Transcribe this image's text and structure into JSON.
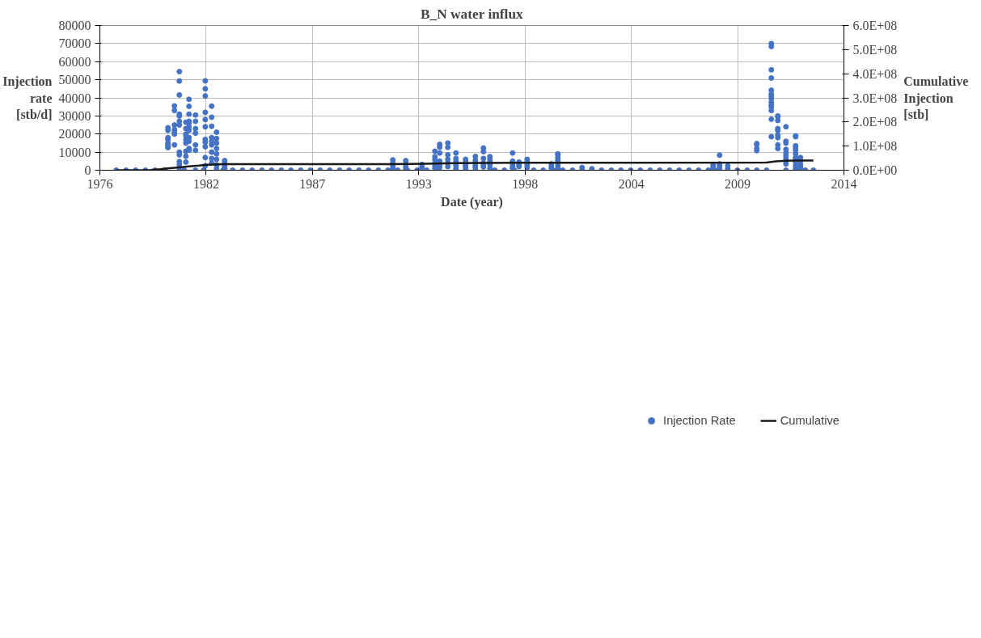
{
  "chart_data": {
    "type": "scatter",
    "title": "B_N water influx",
    "xlabel": "Date (year)",
    "ylabel": "Injection rate [stb/d]",
    "y2label": "Cumulative Injection [stb]",
    "xlim": [
      "1976-08-28",
      "2014-12-27"
    ],
    "xticks": [
      {
        "value": "1976-08-28",
        "label": "1976"
      },
      {
        "value": "1982-02-18",
        "label": "1982"
      },
      {
        "value": "1987-08-11",
        "label": "1987"
      },
      {
        "value": "1993-01-31",
        "label": "1993"
      },
      {
        "value": "1998-07-24",
        "label": "1998"
      },
      {
        "value": "2004-01-14",
        "label": "2004"
      },
      {
        "value": "2009-07-06",
        "label": "2009"
      },
      {
        "value": "2014-12-27",
        "label": "2014"
      }
    ],
    "ylim": [
      0,
      80000
    ],
    "yticks": [
      0,
      10000,
      20000,
      30000,
      40000,
      50000,
      60000,
      70000,
      80000
    ],
    "y2lim": [
      0,
      600000000
    ],
    "y2ticks": [
      {
        "value": 0,
        "label": "0.0E+00"
      },
      {
        "value": 100000000,
        "label": "1.0E+08"
      },
      {
        "value": 200000000,
        "label": "2.0E+08"
      },
      {
        "value": 300000000,
        "label": "3.0E+08"
      },
      {
        "value": 400000000,
        "label": "4.0E+08"
      },
      {
        "value": 500000000,
        "label": "5.0E+08"
      },
      {
        "value": 600000000,
        "label": "6.0E+08"
      }
    ],
    "grid": true,
    "legend": "bottom",
    "series": [
      {
        "name": "Injection Rate",
        "color": "#4472c4",
        "marker": "circle",
        "x": [
          "1980-03",
          "1980-03",
          "1980-03",
          "1980-03",
          "1980-03",
          "1980-03",
          "1980-03",
          "1980-03",
          "1980-07",
          "1980-07",
          "1980-07",
          "1980-07",
          "1980-07",
          "1980-07",
          "1980-07",
          "1980-10",
          "1980-10",
          "1980-10",
          "1980-10",
          "1980-10",
          "1980-10",
          "1980-10",
          "1980-10",
          "1980-10",
          "1980-10",
          "1980-10",
          "1980-10",
          "1981-02",
          "1981-02",
          "1981-02",
          "1981-02",
          "1981-02",
          "1981-02",
          "1981-02",
          "1981-02",
          "1981-02",
          "1981-04",
          "1981-04",
          "1981-04",
          "1981-04",
          "1981-04",
          "1981-04",
          "1981-04",
          "1981-04",
          "1981-04",
          "1981-04",
          "1981-04",
          "1981-08",
          "1981-08",
          "1981-08",
          "1981-08",
          "1981-08",
          "1981-08",
          "1981-08",
          "1982-02",
          "1982-02",
          "1982-02",
          "1982-02",
          "1982-02",
          "1982-02",
          "1982-02",
          "1982-02",
          "1982-02",
          "1982-02",
          "1982-02",
          "1982-06",
          "1982-06",
          "1982-06",
          "1982-06",
          "1982-06",
          "1982-06",
          "1982-06",
          "1982-06",
          "1982-06",
          "1982-09",
          "1982-09",
          "1982-09",
          "1982-09",
          "1982-09",
          "1982-09",
          "1982-09",
          "1982-09",
          "1983-02",
          "1983-02",
          "1983-02",
          "1983-02",
          "1983-02",
          "1991-10",
          "1991-10",
          "1991-10",
          "1991-10",
          "1992-06",
          "1992-06",
          "1992-06",
          "1992-06",
          "1993-04",
          "1993-04",
          "1993-12",
          "1993-12",
          "1993-12",
          "1993-12",
          "1993-12",
          "1993-12",
          "1994-03",
          "1994-03",
          "1994-03",
          "1994-03",
          "1994-03",
          "1994-03",
          "1994-08",
          "1994-08",
          "1994-08",
          "1994-08",
          "1994-08",
          "1994-08",
          "1995-01",
          "1995-01",
          "1995-01",
          "1995-01",
          "1995-01",
          "1995-01",
          "1995-07",
          "1995-07",
          "1995-07",
          "1995-07",
          "1995-07",
          "1996-01",
          "1996-01",
          "1996-01",
          "1996-01",
          "1996-01",
          "1996-06",
          "1996-06",
          "1996-06",
          "1996-06",
          "1996-06",
          "1996-06",
          "1996-10",
          "1996-10",
          "1996-10",
          "1996-10",
          "1996-10",
          "1997-12",
          "1997-12",
          "1997-12",
          "1997-12",
          "1997-12",
          "1998-04",
          "1998-04",
          "1998-04",
          "1998-09",
          "1998-09",
          "1998-09",
          "1998-09",
          "1999-12",
          "1999-12",
          "1999-12",
          "2000-04",
          "2000-04",
          "2000-04",
          "2000-04",
          "2000-04",
          "2000-04",
          "2000-04",
          "2001-07",
          "2002-01",
          "2008-04",
          "2008-04",
          "2008-04",
          "2008-08",
          "2008-08",
          "2008-08",
          "2008-08",
          "2008-08",
          "2009-01",
          "2009-01",
          "2010-07",
          "2010-07",
          "2010-07",
          "2010-07",
          "2011-04",
          "2011-04",
          "2011-04",
          "2011-04",
          "2011-04",
          "2011-04",
          "2011-04",
          "2011-04",
          "2011-04",
          "2011-04",
          "2011-04",
          "2011-04",
          "2011-04",
          "2011-04",
          "2011-08",
          "2011-08",
          "2011-08",
          "2011-08",
          "2011-08",
          "2011-08",
          "2011-08",
          "2011-08",
          "2011-08",
          "2012-01",
          "2012-01",
          "2012-01",
          "2012-01",
          "2012-01",
          "2012-01",
          "2012-01",
          "2012-01",
          "2012-01",
          "2012-07",
          "2012-07",
          "2012-07",
          "2012-07",
          "2012-07",
          "2012-07",
          "2012-07",
          "2012-07",
          "2012-07",
          "2012-07",
          "2012-07",
          "2012-10",
          "2012-10",
          "2012-10",
          "2012-10",
          "2012-10",
          "1977-07",
          "1978-01",
          "1978-07",
          "1979-01",
          "1979-07",
          "1980-01",
          "1981-01",
          "1982-01",
          "1983-01",
          "1983-07",
          "1984-01",
          "1984-07",
          "1985-01",
          "1985-07",
          "1986-01",
          "1986-07",
          "1987-01",
          "1987-07",
          "1988-01",
          "1988-07",
          "1989-01",
          "1989-07",
          "1990-01",
          "1990-07",
          "1991-01",
          "1991-07",
          "1992-01",
          "1992-07",
          "1993-01",
          "1993-07",
          "1994-01",
          "1995-01",
          "1996-01",
          "1997-01",
          "1997-07",
          "1998-01",
          "1999-01",
          "1999-07",
          "2000-01",
          "2000-07",
          "2001-01",
          "2001-07",
          "2002-01",
          "2002-07",
          "2003-01",
          "2003-07",
          "2004-01",
          "2004-07",
          "2005-01",
          "2005-07",
          "2006-01",
          "2006-07",
          "2007-01",
          "2007-07",
          "2008-01",
          "2008-07",
          "2009-01",
          "2009-07",
          "2010-01",
          "2010-07",
          "2011-01",
          "2012-01",
          "2012-07",
          "2013-01",
          "2013-06"
        ],
        "values": [
          18000,
          14000,
          12500,
          22000,
          23500,
          17000,
          13000,
          15000,
          21000,
          35500,
          33000,
          25000,
          22500,
          20000,
          14000,
          54500,
          49300,
          41600,
          27000,
          25000,
          30000,
          31000,
          8500,
          10000,
          4800,
          3100,
          0,
          26500,
          23000,
          20000,
          19000,
          17000,
          15000,
          10500,
          7700,
          4500,
          39200,
          35300,
          31000,
          27000,
          26000,
          24000,
          22000,
          18000,
          16000,
          12000,
          11000,
          30500,
          27000,
          23000,
          20500,
          14000,
          11000,
          0,
          49400,
          45000,
          41000,
          32000,
          28000,
          24000,
          17000,
          15500,
          13000,
          7000,
          2500,
          35400,
          29300,
          24300,
          18000,
          16000,
          14000,
          10000,
          6500,
          4000,
          21000,
          17500,
          15000,
          12000,
          9000,
          6000,
          3000,
          1000,
          5300,
          4000,
          3000,
          2000,
          1000,
          5700,
          4000,
          2500,
          1000,
          5300,
          3700,
          2000,
          500,
          3200,
          1500,
          10500,
          7500,
          6000,
          4000,
          2500,
          1000,
          14300,
          9500,
          12700,
          5000,
          3000,
          1500,
          15000,
          12600,
          8500,
          6000,
          4000,
          2000,
          9500,
          6500,
          5000,
          3500,
          2500,
          1000,
          6000,
          4500,
          3000,
          2000,
          1000,
          7600,
          5500,
          4000,
          2500,
          1500,
          12300,
          10300,
          6500,
          4000,
          3000,
          1800,
          7500,
          6000,
          4500,
          3000,
          1000,
          9500,
          5000,
          3500,
          2000,
          1000,
          4500,
          3000,
          2000,
          6000,
          4500,
          3000,
          1500,
          3500,
          2000,
          1000,
          9000,
          8500,
          7000,
          5500,
          4000,
          2500,
          1000,
          1500,
          800,
          3000,
          2000,
          1000,
          8300,
          3500,
          2500,
          1500,
          500,
          2500,
          1000,
          14700,
          14200,
          12000,
          10800,
          70000,
          68400,
          55500,
          51000,
          44200,
          42000,
          41000,
          39500,
          37500,
          36000,
          35000,
          33000,
          28200,
          18500,
          30000,
          29500,
          27500,
          23000,
          22000,
          19500,
          18000,
          14000,
          12000,
          24000,
          16000,
          15000,
          11500,
          9500,
          8000,
          6500,
          5000,
          3500,
          19000,
          18500,
          13500,
          12500,
          11000,
          9000,
          7000,
          6500,
          4500,
          2500,
          1000,
          7000,
          5000,
          3000,
          1500,
          0,
          0,
          0,
          0,
          0,
          0,
          0,
          0,
          0,
          0,
          0,
          0,
          0,
          0,
          0,
          0,
          0,
          0,
          0,
          0,
          0,
          0,
          0,
          0,
          0,
          0,
          0,
          0,
          0,
          0,
          0,
          0,
          0,
          0,
          0,
          0,
          0,
          0,
          0,
          0,
          0,
          0,
          0,
          0,
          0,
          0,
          0,
          0,
          0,
          0,
          0,
          0,
          0,
          0,
          0,
          0,
          0,
          0,
          0,
          0,
          0,
          0,
          0,
          0,
          0,
          0
        ]
      },
      {
        "name": "Cumulative",
        "type": "line",
        "axis": "y2",
        "color": "#1a1a1a",
        "marker": "none",
        "x": [
          "1977-07",
          "1979-04",
          "1979-10",
          "1980-04",
          "1980-10",
          "1981-04",
          "1981-10",
          "1982-04",
          "1983-01",
          "1991-07",
          "1993-07",
          "1995-01",
          "1996-07",
          "1998-07",
          "2000-07",
          "2011-01",
          "2011-07",
          "2012-01",
          "2012-07",
          "2013-06"
        ],
        "values": [
          0,
          1000000,
          4000000,
          8000000,
          12000000,
          16000000,
          19000000,
          23000000,
          25000000,
          25000000,
          27000000,
          29000000,
          30000000,
          31000000,
          31000000,
          32000000,
          37000000,
          39000000,
          40000000,
          40000000
        ]
      }
    ]
  }
}
